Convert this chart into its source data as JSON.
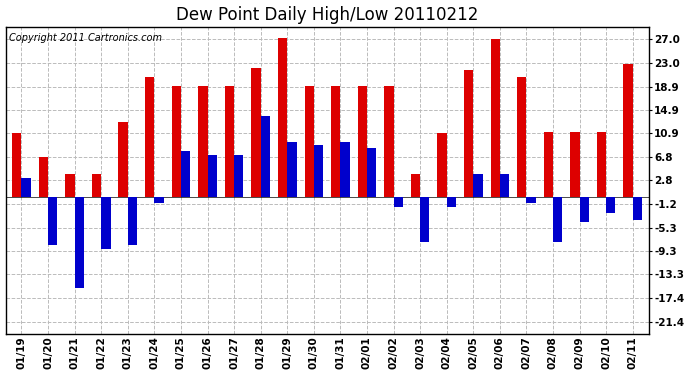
{
  "title": "Dew Point Daily High/Low 20110212",
  "copyright": "Copyright 2011 Cartronics.com",
  "dates": [
    "01/19",
    "01/20",
    "01/21",
    "01/22",
    "01/23",
    "01/24",
    "01/25",
    "01/26",
    "01/27",
    "01/28",
    "01/29",
    "01/30",
    "01/31",
    "02/01",
    "02/02",
    "02/03",
    "02/04",
    "02/05",
    "02/06",
    "02/07",
    "02/08",
    "02/09",
    "02/10",
    "02/11"
  ],
  "highs": [
    11.0,
    6.8,
    3.9,
    3.9,
    12.8,
    20.5,
    19.0,
    19.0,
    19.0,
    22.0,
    27.2,
    19.0,
    19.0,
    19.0,
    19.0,
    3.9,
    10.9,
    21.7,
    27.0,
    20.5,
    11.1,
    11.1,
    11.1,
    22.8
  ],
  "lows": [
    3.3,
    -8.3,
    -15.6,
    -8.9,
    -8.3,
    -1.1,
    7.8,
    7.2,
    7.2,
    13.9,
    9.4,
    8.9,
    9.4,
    8.3,
    -1.7,
    -7.8,
    -1.7,
    3.9,
    3.9,
    -1.1,
    -7.8,
    -4.4,
    -2.8,
    -3.9
  ],
  "bar_color_high": "#dd0000",
  "bar_color_low": "#0000cc",
  "yticks": [
    27.0,
    23.0,
    18.9,
    14.9,
    10.9,
    6.8,
    2.8,
    -1.2,
    -5.3,
    -9.3,
    -13.3,
    -17.4,
    -21.4
  ],
  "ymin": -23.5,
  "ymax": 29.2,
  "background_color": "#ffffff",
  "grid_color": "#bbbbbb",
  "title_fontsize": 12,
  "tick_fontsize": 7.5,
  "copyright_fontsize": 7
}
